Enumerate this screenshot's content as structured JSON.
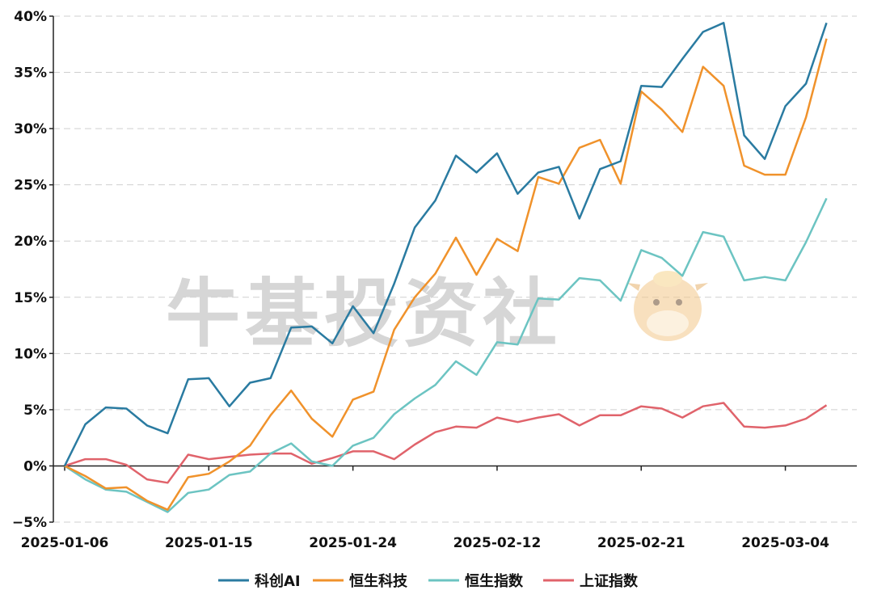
{
  "watermark": {
    "text": "牛基投资社",
    "logo_icon": "cartoon-cow-mascot-icon"
  },
  "chart_data": {
    "type": "line",
    "x": [
      "2025-01-06",
      "2025-01-07",
      "2025-01-08",
      "2025-01-09",
      "2025-01-10",
      "2025-01-13",
      "2025-01-14",
      "2025-01-15",
      "2025-01-16",
      "2025-01-17",
      "2025-01-20",
      "2025-01-21",
      "2025-01-22",
      "2025-01-23",
      "2025-01-24",
      "2025-01-27",
      "2025-02-05",
      "2025-02-06",
      "2025-02-07",
      "2025-02-10",
      "2025-02-11",
      "2025-02-12",
      "2025-02-13",
      "2025-02-14",
      "2025-02-17",
      "2025-02-18",
      "2025-02-19",
      "2025-02-20",
      "2025-02-21",
      "2025-02-24",
      "2025-02-25",
      "2025-02-26",
      "2025-02-27",
      "2025-02-28",
      "2025-03-03",
      "2025-03-04",
      "2025-03-05",
      "2025-03-06",
      "2025-03-07"
    ],
    "x_tick_labels": [
      "2025-01-06",
      "2025-01-15",
      "2025-01-24",
      "2025-02-12",
      "2025-02-21",
      "2025-03-04"
    ],
    "x_tick_values": [
      "2025-01-06",
      "2025-01-15",
      "2025-01-24",
      "2025-02-12",
      "2025-02-21",
      "2025-03-04"
    ],
    "ylim": [
      -5,
      40
    ],
    "y_ticks": [
      -5,
      0,
      5,
      10,
      15,
      20,
      25,
      30,
      35,
      40
    ],
    "y_tick_labels": [
      "−5%",
      "0%",
      "5%",
      "10%",
      "15%",
      "20%",
      "25%",
      "30%",
      "35%",
      "40%"
    ],
    "grid": "horizontal dashed",
    "legend_position": "bottom-center",
    "series": [
      {
        "name": "科创AI",
        "color": "#2a7ba1",
        "values": [
          0,
          3.7,
          5.2,
          5.1,
          3.6,
          2.9,
          7.7,
          7.8,
          5.3,
          7.4,
          7.8,
          12.3,
          12.4,
          10.9,
          14.2,
          11.8,
          16.2,
          21.2,
          23.6,
          27.6,
          26.1,
          27.8,
          24.2,
          26.1,
          26.6,
          22.0,
          26.4,
          27.1,
          33.8,
          33.7,
          36.2,
          38.6,
          39.4,
          29.4,
          27.3,
          32.0,
          34.0,
          39.4,
          null
        ]
      },
      {
        "name": "恒生科技",
        "color": "#f0922b",
        "values": [
          0,
          -0.9,
          -2.0,
          -1.9,
          -3.1,
          -3.9,
          -1.0,
          -0.7,
          0.4,
          1.8,
          4.5,
          6.7,
          4.2,
          2.6,
          5.9,
          6.6,
          12.1,
          15.0,
          17.1,
          20.3,
          17.0,
          20.2,
          19.1,
          25.7,
          25.1,
          28.3,
          29.0,
          25.1,
          33.3,
          31.7,
          29.7,
          35.5,
          33.8,
          26.7,
          25.9,
          25.9,
          31.0,
          38.0,
          null
        ]
      },
      {
        "name": "恒生指数",
        "color": "#6cc4c2",
        "values": [
          0,
          -1.2,
          -2.1,
          -2.3,
          -3.2,
          -4.1,
          -2.4,
          -2.1,
          -0.8,
          -0.5,
          1.1,
          2.0,
          0.4,
          0.0,
          1.8,
          2.5,
          4.6,
          6.0,
          7.2,
          9.3,
          8.1,
          11.0,
          10.8,
          14.9,
          14.8,
          16.7,
          16.5,
          14.7,
          19.2,
          18.5,
          16.9,
          20.8,
          20.4,
          16.5,
          16.8,
          16.5,
          19.9,
          23.8,
          null
        ]
      },
      {
        "name": "上证指数",
        "color": "#e0636b",
        "values": [
          0,
          0.6,
          0.6,
          0.1,
          -1.2,
          -1.5,
          1.0,
          0.6,
          0.8,
          1.0,
          1.1,
          1.1,
          0.2,
          0.7,
          1.3,
          1.3,
          0.6,
          1.9,
          3.0,
          3.5,
          3.4,
          4.3,
          3.9,
          4.3,
          4.6,
          3.6,
          4.5,
          4.5,
          5.3,
          5.1,
          4.3,
          5.3,
          5.6,
          3.5,
          3.4,
          3.6,
          4.2,
          5.4,
          null
        ]
      }
    ]
  }
}
